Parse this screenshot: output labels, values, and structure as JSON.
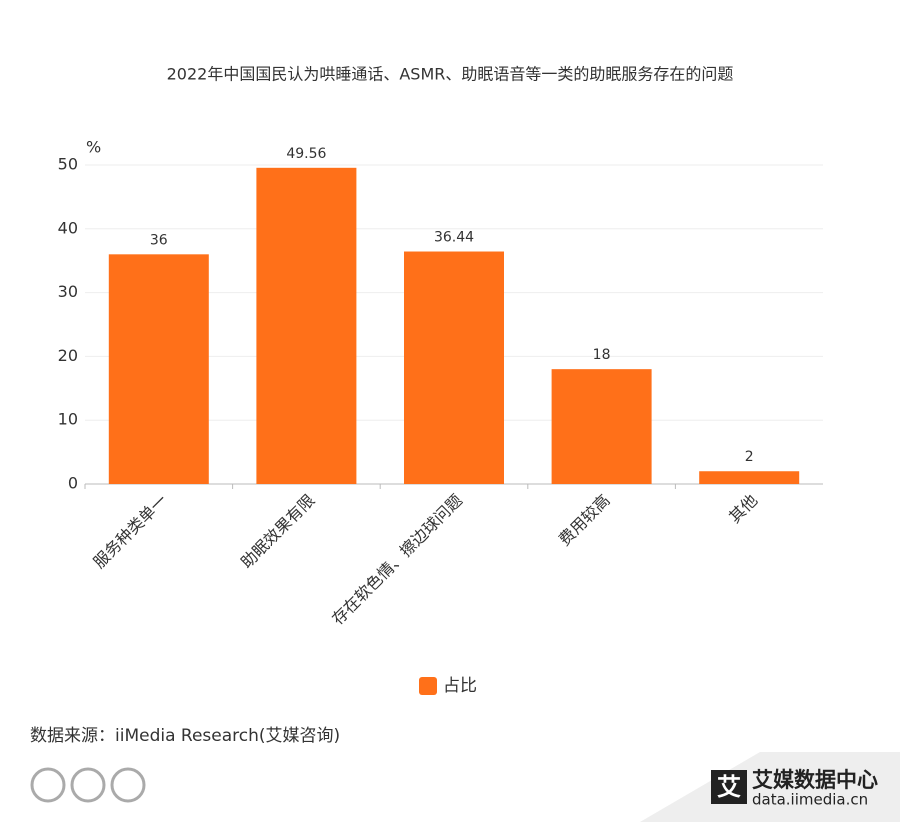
{
  "chart_data": {
    "type": "bar",
    "title": "2022年中国国民认为哄睡通话、ASMR、助眠语音等一类的助眠服务存在的问题",
    "y_unit": "%",
    "categories": [
      "服务种类单一",
      "助眠效果有限",
      "存在软色情、擦边球问题",
      "费用较高",
      "其他"
    ],
    "series": [
      {
        "name": "占比",
        "color": "#ff7019",
        "values": [
          36,
          49.56,
          36.44,
          18,
          2
        ]
      }
    ],
    "ylim": [
      0,
      50
    ],
    "yticks": [
      0,
      10,
      20,
      30,
      40,
      50
    ],
    "grid": true
  },
  "source": "数据来源：iiMedia Research(艾媒咨询)",
  "logo": {
    "mark": "艾",
    "name": "艾媒数据中心",
    "url": "data.iimedia.cn"
  }
}
